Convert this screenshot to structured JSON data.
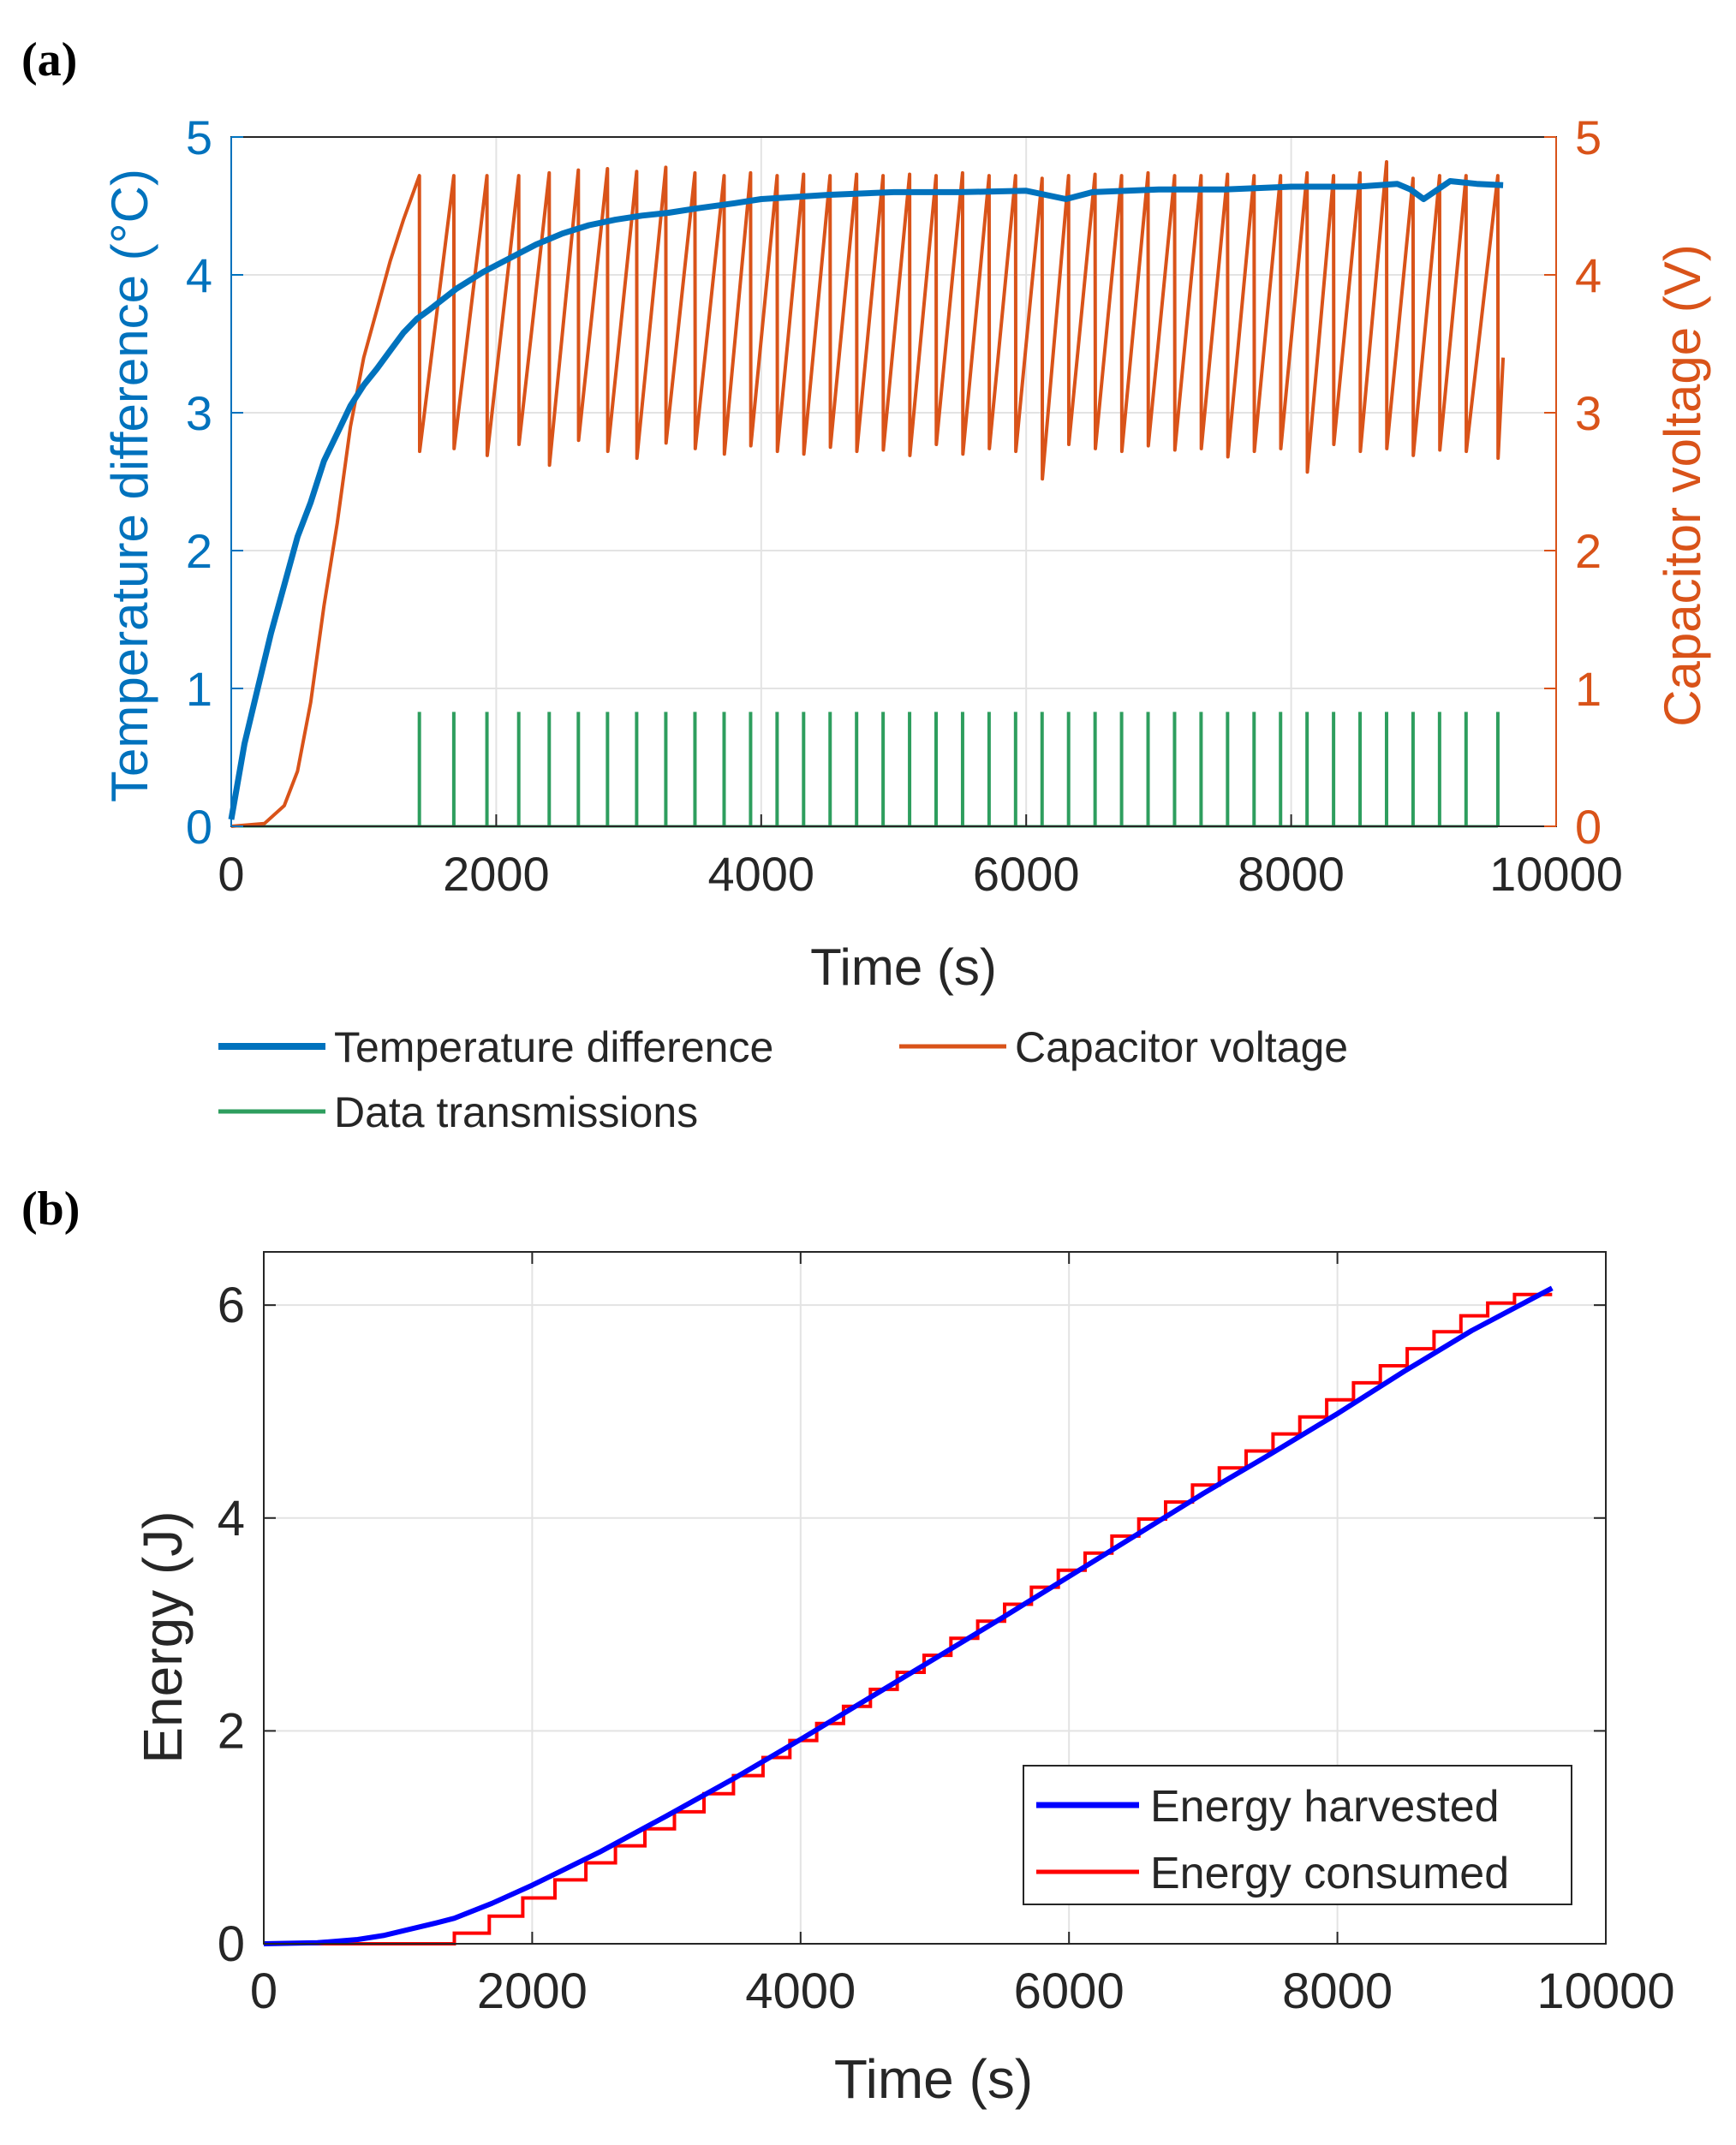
{
  "panels": {
    "a": {
      "label": "(a)"
    },
    "b": {
      "label": "(b)"
    }
  },
  "colors": {
    "temp": "#0072BD",
    "cap": "#D95319",
    "tx": "#2E9E5E",
    "harvested": "#0000FF",
    "consumed": "#FF0000",
    "grid": "#E3E3E3",
    "axis": "#262626"
  },
  "chart_data": [
    {
      "type": "line",
      "title": "",
      "xlabel": "Time (s)",
      "ylabel_left": "Temperature difference (°C)",
      "ylabel_right": "Capacitor voltage (V)",
      "xlim": [
        0,
        10000
      ],
      "ylim_left": [
        0,
        5
      ],
      "ylim_right": [
        0,
        5
      ],
      "xticks": [
        "0",
        "2000",
        "4000",
        "6000",
        "8000",
        "10000"
      ],
      "yticks_left": [
        "0",
        "1",
        "2",
        "3",
        "4",
        "5"
      ],
      "yticks_right": [
        "0",
        "1",
        "2",
        "3",
        "4",
        "5"
      ],
      "grid": true,
      "legend_position": "below",
      "legend": [
        "Temperature difference",
        "Capacitor voltage",
        "Data transmissions"
      ],
      "series": [
        {
          "name": "Temperature difference",
          "axis": "left",
          "x": [
            0,
            100,
            200,
            300,
            400,
            500,
            600,
            700,
            800,
            900,
            1000,
            1100,
            1200,
            1300,
            1400,
            1500,
            1700,
            1900,
            2100,
            2300,
            2500,
            2700,
            2900,
            3100,
            3300,
            3500,
            3800,
            4000,
            4500,
            5000,
            5500,
            6000,
            6300,
            6500,
            7000,
            7500,
            8000,
            8500,
            8800,
            8900,
            9000,
            9200,
            9400,
            9600
          ],
          "y": [
            0.05,
            0.6,
            1.0,
            1.4,
            1.75,
            2.1,
            2.35,
            2.65,
            2.85,
            3.05,
            3.2,
            3.32,
            3.45,
            3.58,
            3.68,
            3.75,
            3.9,
            4.02,
            4.12,
            4.22,
            4.3,
            4.36,
            4.4,
            4.43,
            4.45,
            4.48,
            4.52,
            4.55,
            4.58,
            4.6,
            4.6,
            4.61,
            4.55,
            4.6,
            4.62,
            4.62,
            4.64,
            4.64,
            4.66,
            4.62,
            4.55,
            4.68,
            4.66,
            4.65
          ]
        },
        {
          "name": "Capacitor voltage",
          "axis": "right",
          "x": [
            0,
            250,
            400,
            500,
            600,
            700,
            800,
            900,
            1000,
            1100,
            1200,
            1300,
            1420
          ],
          "y": [
            0,
            0.02,
            0.15,
            0.4,
            0.9,
            1.6,
            2.2,
            2.9,
            3.4,
            3.75,
            4.1,
            4.4,
            4.72
          ],
          "sawtooth": {
            "description": "charge/discharge cycles after first transmission",
            "cycle_times": [
              1420,
              1680,
              1930,
              2170,
              2400,
              2620,
              2840,
              3060,
              3280,
              3500,
              3720,
              3920,
              4120,
              4320,
              4520,
              4720,
              4920,
              5120,
              5320,
              5520,
              5720,
              5920,
              6120,
              6320,
              6520,
              6720,
              6920,
              7120,
              7320,
              7520,
              7720,
              7920,
              8120,
              8320,
              8520,
              8720,
              8920,
              9120,
              9320,
              9560
            ],
            "peak_v": 4.72,
            "trough_v": 2.72,
            "end": {
              "x": 9600,
              "y": 3.4
            }
          }
        },
        {
          "name": "Data transmissions",
          "axis": "left",
          "pulse_height": 0.83,
          "x": [
            1420,
            1680,
            1930,
            2170,
            2400,
            2620,
            2840,
            3060,
            3280,
            3500,
            3720,
            3920,
            4120,
            4320,
            4520,
            4720,
            4920,
            5120,
            5320,
            5520,
            5720,
            5920,
            6120,
            6320,
            6520,
            6720,
            6920,
            7120,
            7320,
            7520,
            7720,
            7920,
            8120,
            8320,
            8520,
            8720,
            8920,
            9120,
            9320,
            9560
          ]
        }
      ]
    },
    {
      "type": "line",
      "title": "",
      "xlabel": "Time (s)",
      "ylabel": "Energy (J)",
      "xlim": [
        0,
        10000
      ],
      "ylim": [
        0,
        6.5
      ],
      "xticks": [
        "0",
        "2000",
        "4000",
        "6000",
        "8000",
        "10000"
      ],
      "yticks": [
        "0",
        "2",
        "4",
        "6"
      ],
      "grid": true,
      "legend_position": "bottom-right",
      "legend": [
        "Energy harvested",
        "Energy consumed"
      ],
      "series": [
        {
          "name": "Energy harvested",
          "x": [
            0,
            400,
            700,
            900,
            1100,
            1300,
            1420,
            1700,
            2000,
            2500,
            3000,
            3500,
            4000,
            4500,
            5000,
            5500,
            6000,
            6500,
            7000,
            7500,
            8000,
            8500,
            9000,
            9600
          ],
          "y": [
            0,
            0.01,
            0.04,
            0.08,
            0.14,
            0.2,
            0.24,
            0.38,
            0.55,
            0.86,
            1.2,
            1.55,
            1.92,
            2.3,
            2.68,
            3.06,
            3.45,
            3.84,
            4.23,
            4.6,
            4.98,
            5.38,
            5.76,
            6.16
          ]
        },
        {
          "name": "Energy consumed",
          "step": true,
          "x": [
            0,
            1420,
            1680,
            1930,
            2170,
            2400,
            2620,
            2840,
            3060,
            3280,
            3500,
            3720,
            3920,
            4120,
            4320,
            4520,
            4720,
            4920,
            5120,
            5320,
            5520,
            5720,
            5920,
            6120,
            6320,
            6520,
            6720,
            6920,
            7120,
            7320,
            7520,
            7720,
            7920,
            8120,
            8320,
            8520,
            8720,
            8920,
            9120,
            9320,
            9560,
            9600
          ],
          "y": [
            0,
            0.1,
            0.26,
            0.43,
            0.6,
            0.76,
            0.92,
            1.08,
            1.24,
            1.41,
            1.58,
            1.75,
            1.91,
            2.07,
            2.23,
            2.39,
            2.55,
            2.71,
            2.87,
            3.03,
            3.19,
            3.35,
            3.51,
            3.67,
            3.83,
            3.99,
            4.15,
            4.31,
            4.47,
            4.63,
            4.79,
            4.95,
            5.11,
            5.27,
            5.43,
            5.59,
            5.75,
            5.9,
            6.02,
            6.1,
            6.1,
            6.1
          ]
        }
      ]
    }
  ]
}
